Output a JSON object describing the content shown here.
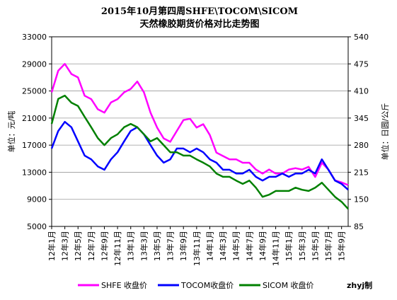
{
  "chart_data": {
    "type": "line",
    "title": "2015年10月第四周SHFE\\TOCOM\\SICOM",
    "subtitle": "天然橡胶期货价格对比走势图",
    "y_label": "单位：元/吨",
    "y2_label": "单位：日圆/公斤",
    "annotation": "zhyj制",
    "categories": [
      "12年1月",
      null,
      "12年3月",
      null,
      "12年5月",
      null,
      "12年7月",
      null,
      "12年9月",
      null,
      "12年11月",
      null,
      "13年1月",
      null,
      "13年3月",
      null,
      "13年5月",
      null,
      "13年7月",
      null,
      "13年9月",
      null,
      "13年11月",
      null,
      "14年1月",
      null,
      "14年3月",
      null,
      "14年5月",
      null,
      "14年7月",
      null,
      "14年9月",
      null,
      "14年11月",
      null,
      "15年1月",
      null,
      "15年3月",
      null,
      "15年5月",
      null,
      "15年7月",
      null,
      "15年9月",
      null
    ],
    "ylim": [
      5000,
      33000
    ],
    "yticks": [
      5000,
      9000,
      13000,
      17000,
      21000,
      25000,
      29000,
      33000
    ],
    "y2lim": [
      85,
      540
    ],
    "y2ticks": [
      85,
      150,
      215,
      280,
      345,
      410,
      475,
      540
    ],
    "grid": true,
    "series": [
      {
        "name": "SHFE 收盘价",
        "color": "#ff00ff",
        "values": [
          24800,
          28000,
          29000,
          27500,
          27000,
          24300,
          23800,
          22300,
          21800,
          23300,
          23800,
          24800,
          25300,
          26400,
          24800,
          21800,
          19600,
          18000,
          17500,
          19100,
          20700,
          20900,
          19600,
          20100,
          18500,
          15900,
          15400,
          14900,
          14900,
          14400,
          14400,
          13400,
          12800,
          13400,
          12800,
          12800,
          13400,
          13600,
          13400,
          13800,
          12300,
          14400,
          13400,
          11800,
          11500,
          11100
        ]
      },
      {
        "name": "TOCOM收盘价",
        "color": "#0000ff",
        "axis": "y2",
        "values": [
          272,
          314,
          336,
          323,
          289,
          255,
          246,
          229,
          221,
          246,
          263,
          289,
          314,
          323,
          306,
          280,
          255,
          238,
          246,
          272,
          272,
          263,
          272,
          263,
          246,
          238,
          221,
          221,
          212,
          212,
          221,
          204,
          195,
          204,
          204,
          212,
          204,
          212,
          212,
          221,
          212,
          246,
          221,
          195,
          187,
          173
        ]
      },
      {
        "name": "SICOM 收盘价",
        "color": "#008000",
        "axis": "y2",
        "values": [
          331,
          391,
          399,
          382,
          374,
          348,
          323,
          297,
          280,
          297,
          306,
          323,
          331,
          323,
          306,
          289,
          297,
          280,
          263,
          263,
          255,
          255,
          246,
          238,
          229,
          212,
          204,
          204,
          195,
          187,
          195,
          178,
          156,
          161,
          170,
          170,
          170,
          178,
          173,
          170,
          178,
          190,
          173,
          156,
          144,
          127
        ]
      }
    ]
  }
}
